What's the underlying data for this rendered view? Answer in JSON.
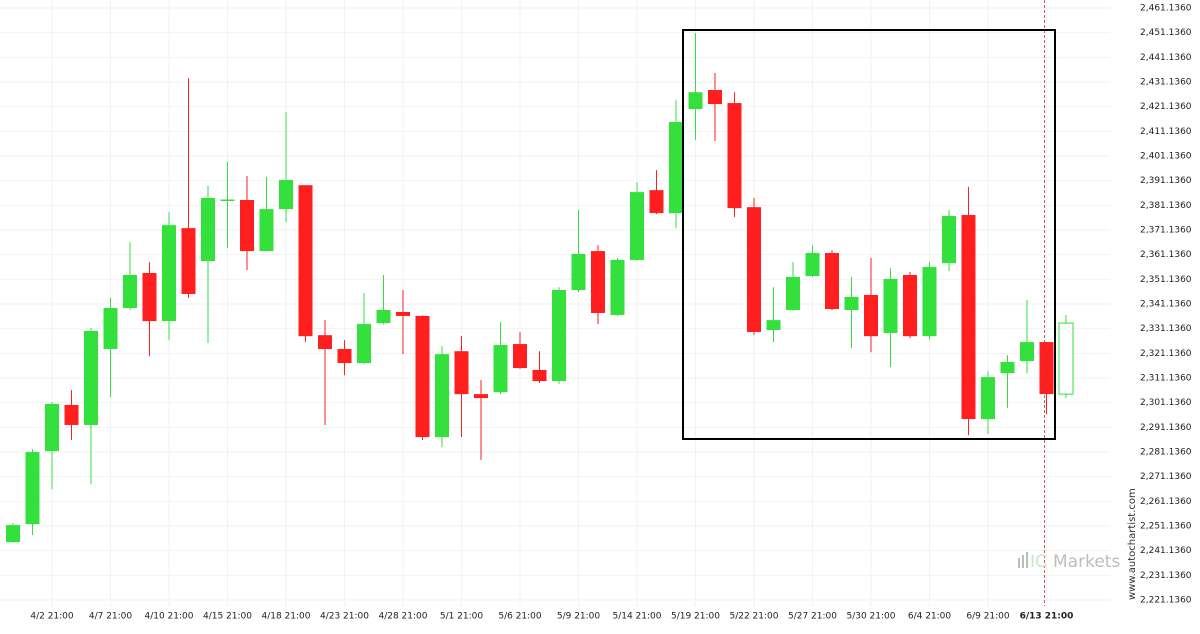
{
  "chart_data": {
    "type": "candlestick",
    "categories": [
      null,
      null,
      "4/2 21:00",
      null,
      null,
      "4/7 21:00",
      null,
      null,
      "4/10 21:00",
      null,
      null,
      "4/15 21:00",
      null,
      null,
      "4/18 21:00",
      null,
      null,
      "4/23 21:00",
      null,
      null,
      "4/28 21:00",
      null,
      null,
      "5/1 21:00",
      null,
      null,
      "5/6 21:00",
      null,
      null,
      "5/9 21:00",
      null,
      null,
      "5/14 21:00",
      null,
      null,
      "5/19 21:00",
      null,
      null,
      "5/22 21:00",
      null,
      null,
      "5/27 21:00",
      null,
      null,
      "5/30 21:00",
      null,
      null,
      "6/4 21:00",
      null,
      null,
      "6/9 21:00",
      null,
      null,
      "6/13 21:00",
      null
    ],
    "open": [
      2244.6,
      2251.9,
      2281.5,
      2300.2,
      2292.1,
      2322.9,
      2339.5,
      2353.7,
      2334.2,
      2371.9,
      2358.5,
      2383.1,
      2383.3,
      2362.6,
      2379.6,
      2389.3,
      2328.5,
      2322.9,
      2317.2,
      2333.4,
      2337.9,
      2336.3,
      2287.2,
      2322.0,
      2304.6,
      2305.4,
      2324.9,
      2314.4,
      2309.9,
      2346.8,
      2362.6,
      2336.7,
      2359.0,
      2387.3,
      2378.0,
      2420.2,
      2427.9,
      2422.6,
      2380.4,
      2330.6,
      2338.7,
      2352.5,
      2361.8,
      2338.7,
      2344.8,
      2329.4,
      2352.9,
      2328.1,
      2357.7,
      2377.2,
      2294.5,
      2313.1,
      2318.0,
      2325.7,
      2304.6
    ],
    "high": [
      2252.3,
      2282.3,
      2301.4,
      2306.2,
      2331.4,
      2343.6,
      2366.2,
      2358.1,
      2378.4,
      2432.7,
      2389.0,
      2398.7,
      2393.0,
      2392.6,
      2418.9,
      2389.3,
      2334.6,
      2326.5,
      2345.6,
      2352.9,
      2346.8,
      2336.5,
      2324.1,
      2328.1,
      2310.3,
      2333.8,
      2329.8,
      2322.0,
      2348.0,
      2379.2,
      2365.0,
      2359.8,
      2390.6,
      2395.4,
      2423.8,
      2451.0,
      2434.8,
      2427.0,
      2384.1,
      2348.0,
      2358.1,
      2365.0,
      2363.0,
      2352.1,
      2359.8,
      2355.7,
      2354.1,
      2358.1,
      2379.2,
      2388.6,
      2313.9,
      2320.4,
      2342.8,
      2325.7,
      2336.7
    ],
    "low": [
      2244.2,
      2247.5,
      2266.1,
      2286.0,
      2268.1,
      2303.4,
      2338.7,
      2320.0,
      2326.5,
      2343.6,
      2325.3,
      2363.8,
      2354.9,
      2362.6,
      2374.3,
      2325.7,
      2292.1,
      2312.3,
      2316.8,
      2332.8,
      2320.8,
      2286.0,
      2283.1,
      2287.2,
      2277.9,
      2304.6,
      2314.8,
      2309.1,
      2308.7,
      2346.0,
      2333.0,
      2336.3,
      2358.6,
      2377.6,
      2371.9,
      2407.6,
      2407.2,
      2376.4,
      2328.5,
      2325.7,
      2338.3,
      2352.1,
      2338.7,
      2323.3,
      2321.6,
      2315.6,
      2327.3,
      2326.9,
      2354.5,
      2288.0,
      2288.4,
      2299.0,
      2313.1,
      2296.5,
      2303.0
    ],
    "close": [
      2251.5,
      2281.1,
      2300.6,
      2292.1,
      2330.2,
      2339.5,
      2352.9,
      2334.2,
      2373.1,
      2345.2,
      2384.1,
      2383.5,
      2362.6,
      2379.6,
      2391.4,
      2328.1,
      2322.9,
      2317.2,
      2333.0,
      2338.7,
      2336.3,
      2287.2,
      2320.8,
      2304.6,
      2303.0,
      2324.5,
      2315.2,
      2309.9,
      2346.8,
      2361.4,
      2337.5,
      2359.0,
      2386.5,
      2378.0,
      2414.9,
      2427.0,
      2422.2,
      2380.0,
      2329.8,
      2334.6,
      2352.1,
      2361.8,
      2339.1,
      2344.0,
      2328.1,
      2351.3,
      2328.1,
      2356.1,
      2376.8,
      2294.5,
      2311.5,
      2317.6,
      2325.7,
      2304.6,
      2333.4
    ],
    "up_color": "#33e03c",
    "down_color": "#ff1f1f",
    "ylim": [
      2221.136,
      2461.136
    ],
    "yticks": [
      {
        "value": 2221.136,
        "label": "2,221.1360"
      },
      {
        "value": 2231.136,
        "label": "2,231.1360"
      },
      {
        "value": 2241.136,
        "label": "2,241.1360"
      },
      {
        "value": 2251.136,
        "label": "2,251.1360"
      },
      {
        "value": 2261.136,
        "label": "2,261.1360"
      },
      {
        "value": 2271.136,
        "label": "2,271.1360"
      },
      {
        "value": 2281.136,
        "label": "2,281.1360"
      },
      {
        "value": 2291.136,
        "label": "2,291.1360"
      },
      {
        "value": 2301.136,
        "label": "2,301.1360"
      },
      {
        "value": 2311.136,
        "label": "2,311.1360"
      },
      {
        "value": 2321.136,
        "label": "2,321.1360"
      },
      {
        "value": 2331.136,
        "label": "2,331.1360"
      },
      {
        "value": 2341.136,
        "label": "2,341.1360"
      },
      {
        "value": 2351.136,
        "label": "2,351.1360"
      },
      {
        "value": 2361.136,
        "label": "2,361.1360"
      },
      {
        "value": 2371.136,
        "label": "2,371.1360"
      },
      {
        "value": 2381.136,
        "label": "2,381.1360"
      },
      {
        "value": 2391.136,
        "label": "2,391.1360"
      },
      {
        "value": 2401.136,
        "label": "2,401.1360"
      },
      {
        "value": 2411.136,
        "label": "2,411.1360"
      },
      {
        "value": 2421.136,
        "label": "2,421.1360"
      },
      {
        "value": 2431.136,
        "label": "2,431.1360"
      },
      {
        "value": 2441.136,
        "label": "2,441.1360"
      },
      {
        "value": 2451.136,
        "label": "2,451.1360"
      },
      {
        "value": 2461.136,
        "label": "2,461.1360"
      }
    ],
    "grid": true,
    "watermark": "www.autochartist.com",
    "logo_prefix": "IC",
    "logo_text": "Markets"
  }
}
